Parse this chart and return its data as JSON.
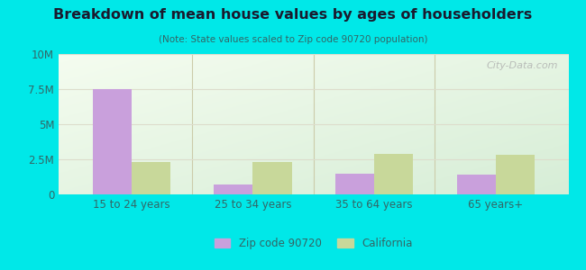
{
  "title": "Breakdown of mean house values by ages of householders",
  "subtitle": "(Note: State values scaled to Zip code 90720 population)",
  "categories": [
    "15 to 24 years",
    "25 to 34 years",
    "35 to 64 years",
    "65 years+"
  ],
  "zip_values": [
    7500000,
    700000,
    1500000,
    1400000
  ],
  "ca_values": [
    2300000,
    2300000,
    2900000,
    2800000
  ],
  "zip_color": "#c9a0dc",
  "ca_color": "#c8d89a",
  "background_color": "#00e8e8",
  "ylim": [
    0,
    10000000
  ],
  "yticks": [
    0,
    2500000,
    5000000,
    7500000,
    10000000
  ],
  "legend_zip": "Zip code 90720",
  "legend_ca": "California",
  "bar_width": 0.32,
  "watermark": "City-Data.com",
  "title_color": "#1a1a2e",
  "subtitle_color": "#336666",
  "tick_color": "#336666",
  "grid_color": "#ddddcc",
  "separator_color": "#ccccaa"
}
